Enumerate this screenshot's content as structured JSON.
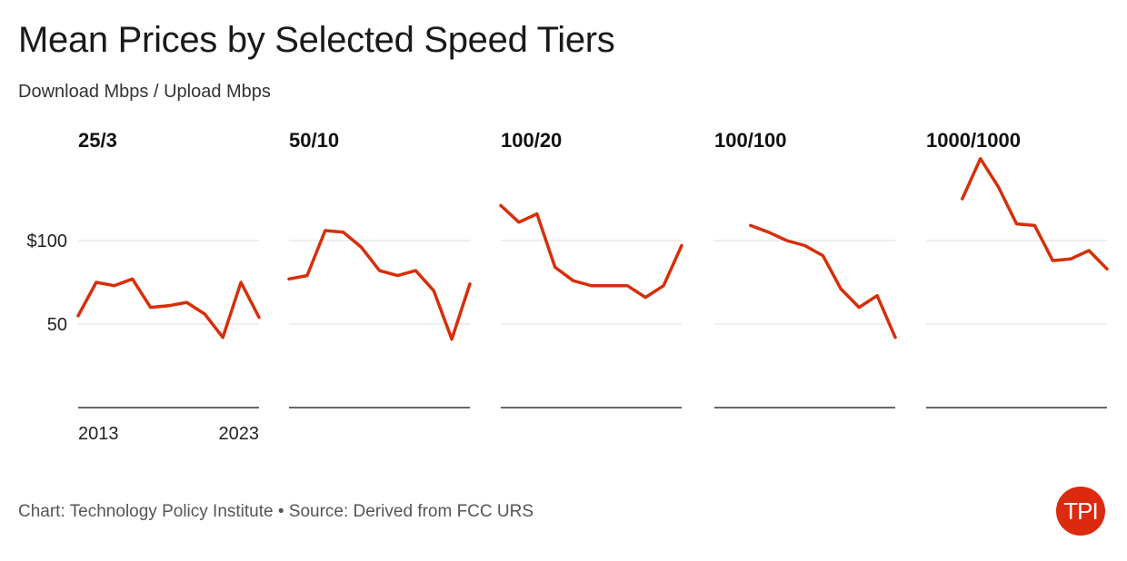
{
  "title": "Mean Prices by Selected Speed Tiers",
  "subtitle": "Download Mbps / Upload Mbps",
  "footer": "Chart: Technology Policy Institute • Source: Derived from FCC URS",
  "logo": {
    "text": "TPI",
    "color": "#dc2a0e"
  },
  "accent_color": "#d62f0a",
  "chart_data": {
    "type": "line",
    "layout": "small-multiples",
    "ylim": [
      0,
      150
    ],
    "y_ticks": [
      50,
      100
    ],
    "y_tick_labels": [
      "50",
      "$100"
    ],
    "x_tick_labels": [
      "2013",
      "2023"
    ],
    "xlim": [
      2013,
      2023
    ],
    "grid": true,
    "panels": [
      {
        "title": "25/3",
        "x": [
          2013,
          2014,
          2015,
          2016,
          2017,
          2018,
          2019,
          2020,
          2021,
          2022,
          2023
        ],
        "values": [
          55,
          75,
          73,
          77,
          60,
          61,
          63,
          56,
          42,
          75,
          54
        ]
      },
      {
        "title": "50/10",
        "x": [
          2013,
          2014,
          2015,
          2016,
          2017,
          2018,
          2019,
          2020,
          2021,
          2022,
          2023
        ],
        "values": [
          77,
          79,
          106,
          105,
          96,
          82,
          79,
          82,
          70,
          41,
          74
        ]
      },
      {
        "title": "100/20",
        "x": [
          2013,
          2014,
          2015,
          2016,
          2017,
          2018,
          2019,
          2020,
          2021,
          2022,
          2023
        ],
        "values": [
          121,
          111,
          116,
          84,
          76,
          73,
          73,
          73,
          66,
          73,
          97
        ]
      },
      {
        "title": "100/100",
        "x": [
          2015,
          2016,
          2017,
          2018,
          2019,
          2020,
          2021,
          2022,
          2023
        ],
        "values": [
          109,
          105,
          100,
          97,
          91,
          71,
          60,
          67,
          42
        ]
      },
      {
        "title": "1000/1000",
        "x": [
          2015,
          2016,
          2017,
          2018,
          2019,
          2020,
          2021,
          2022,
          2023
        ],
        "values": [
          125,
          149,
          132,
          110,
          109,
          88,
          89,
          94,
          83
        ]
      }
    ]
  }
}
